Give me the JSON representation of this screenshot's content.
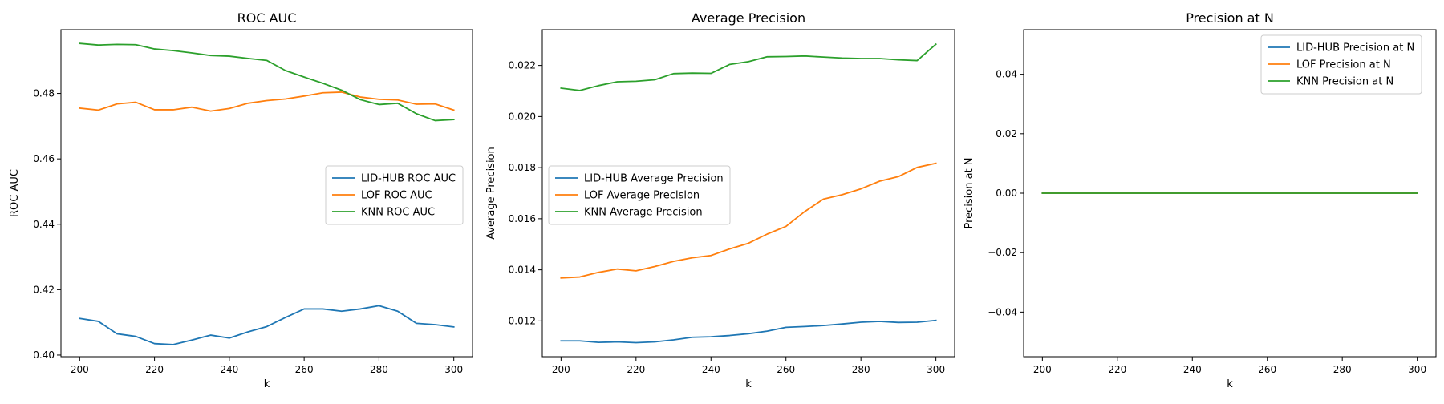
{
  "chart_data": [
    {
      "type": "line",
      "title": "ROC AUC",
      "xlabel": "k",
      "ylabel": "ROC AUC",
      "xlim": [
        195,
        305
      ],
      "ylim": [
        0.3995,
        0.4995
      ],
      "xticks": [
        200,
        220,
        240,
        260,
        280,
        300
      ],
      "yticks": [
        0.4,
        0.42,
        0.44,
        0.46,
        0.48
      ],
      "ytick_labels": [
        "0.40",
        "0.42",
        "0.44",
        "0.46",
        "0.48"
      ],
      "legend_position": "center-right",
      "x": [
        200,
        205,
        210,
        215,
        220,
        225,
        230,
        235,
        240,
        245,
        250,
        255,
        260,
        265,
        270,
        275,
        280,
        285,
        290,
        295,
        300
      ],
      "series": [
        {
          "name": "LID-HUB ROC AUC",
          "color": "#1f77b4",
          "values": [
            0.4112,
            0.4103,
            0.4065,
            0.4057,
            0.4035,
            0.4032,
            0.4046,
            0.4061,
            0.4052,
            0.4071,
            0.4087,
            0.4115,
            0.4141,
            0.4141,
            0.4134,
            0.4141,
            0.4151,
            0.4134,
            0.4097,
            0.4093,
            0.4086
          ]
        },
        {
          "name": "LOF ROC AUC",
          "color": "#ff7f0e",
          "values": [
            0.4755,
            0.4749,
            0.4768,
            0.4773,
            0.475,
            0.475,
            0.4758,
            0.4746,
            0.4754,
            0.477,
            0.4778,
            0.4783,
            0.4792,
            0.4802,
            0.4804,
            0.4789,
            0.4782,
            0.478,
            0.4767,
            0.4768,
            0.4749
          ]
        },
        {
          "name": "KNN ROC AUC",
          "color": "#2ca02c",
          "values": [
            0.4953,
            0.4948,
            0.495,
            0.4949,
            0.4936,
            0.4931,
            0.4924,
            0.4916,
            0.4914,
            0.4907,
            0.4901,
            0.487,
            0.485,
            0.4831,
            0.481,
            0.4781,
            0.4766,
            0.477,
            0.4738,
            0.4717,
            0.472
          ]
        }
      ]
    },
    {
      "type": "line",
      "title": "Average Precision",
      "xlabel": "k",
      "ylabel": "Average Precision",
      "xlim": [
        195,
        305
      ],
      "ylim": [
        0.0106,
        0.0234
      ],
      "xticks": [
        200,
        220,
        240,
        260,
        280,
        300
      ],
      "yticks": [
        0.012,
        0.014,
        0.016,
        0.018,
        0.02,
        0.022
      ],
      "ytick_labels": [
        "0.012",
        "0.014",
        "0.016",
        "0.018",
        "0.020",
        "0.022"
      ],
      "legend_position": "center-left",
      "x": [
        200,
        205,
        210,
        215,
        220,
        225,
        230,
        235,
        240,
        245,
        250,
        255,
        260,
        265,
        270,
        275,
        280,
        285,
        290,
        295,
        300
      ],
      "series": [
        {
          "name": "LID-HUB Average Precision",
          "color": "#1f77b4",
          "values": [
            0.01122,
            0.01122,
            0.01116,
            0.01118,
            0.01115,
            0.01118,
            0.01126,
            0.01136,
            0.01138,
            0.01143,
            0.0115,
            0.0116,
            0.01175,
            0.01178,
            0.01182,
            0.01188,
            0.01195,
            0.01198,
            0.01194,
            0.01195,
            0.01202
          ]
        },
        {
          "name": "LOF Average Precision",
          "color": "#ff7f0e",
          "values": [
            0.01368,
            0.01372,
            0.0139,
            0.01403,
            0.01396,
            0.01413,
            0.01433,
            0.01447,
            0.01456,
            0.01482,
            0.01504,
            0.0154,
            0.0157,
            0.01628,
            0.01677,
            0.01694,
            0.01717,
            0.01747,
            0.01765,
            0.01801,
            0.01817
          ]
        },
        {
          "name": "KNN Average Precision",
          "color": "#2ca02c",
          "values": [
            0.02111,
            0.02102,
            0.02121,
            0.02136,
            0.02138,
            0.02144,
            0.02168,
            0.0217,
            0.02169,
            0.02204,
            0.02215,
            0.02234,
            0.02235,
            0.02237,
            0.02233,
            0.02229,
            0.02227,
            0.02227,
            0.02222,
            0.02219,
            0.02283
          ]
        }
      ]
    },
    {
      "type": "line",
      "title": "Precision at N",
      "xlabel": "k",
      "ylabel": "Precision at N",
      "xlim": [
        195,
        305
      ],
      "ylim": [
        -0.055,
        0.055
      ],
      "xticks": [
        200,
        220,
        240,
        260,
        280,
        300
      ],
      "yticks": [
        -0.04,
        -0.02,
        0.0,
        0.02,
        0.04
      ],
      "ytick_labels": [
        "−0.04",
        "−0.02",
        "0.00",
        "0.02",
        "0.04"
      ],
      "legend_position": "top-right",
      "x": [
        200,
        205,
        210,
        215,
        220,
        225,
        230,
        235,
        240,
        245,
        250,
        255,
        260,
        265,
        270,
        275,
        280,
        285,
        290,
        295,
        300
      ],
      "series": [
        {
          "name": "LID-HUB Precision at N",
          "color": "#1f77b4",
          "values": [
            0,
            0,
            0,
            0,
            0,
            0,
            0,
            0,
            0,
            0,
            0,
            0,
            0,
            0,
            0,
            0,
            0,
            0,
            0,
            0,
            0
          ]
        },
        {
          "name": "LOF Precision at N",
          "color": "#ff7f0e",
          "values": [
            0,
            0,
            0,
            0,
            0,
            0,
            0,
            0,
            0,
            0,
            0,
            0,
            0,
            0,
            0,
            0,
            0,
            0,
            0,
            0,
            0
          ]
        },
        {
          "name": "KNN Precision at N",
          "color": "#2ca02c",
          "values": [
            0,
            0,
            0,
            0,
            0,
            0,
            0,
            0,
            0,
            0,
            0,
            0,
            0,
            0,
            0,
            0,
            0,
            0,
            0,
            0,
            0
          ]
        }
      ]
    }
  ]
}
